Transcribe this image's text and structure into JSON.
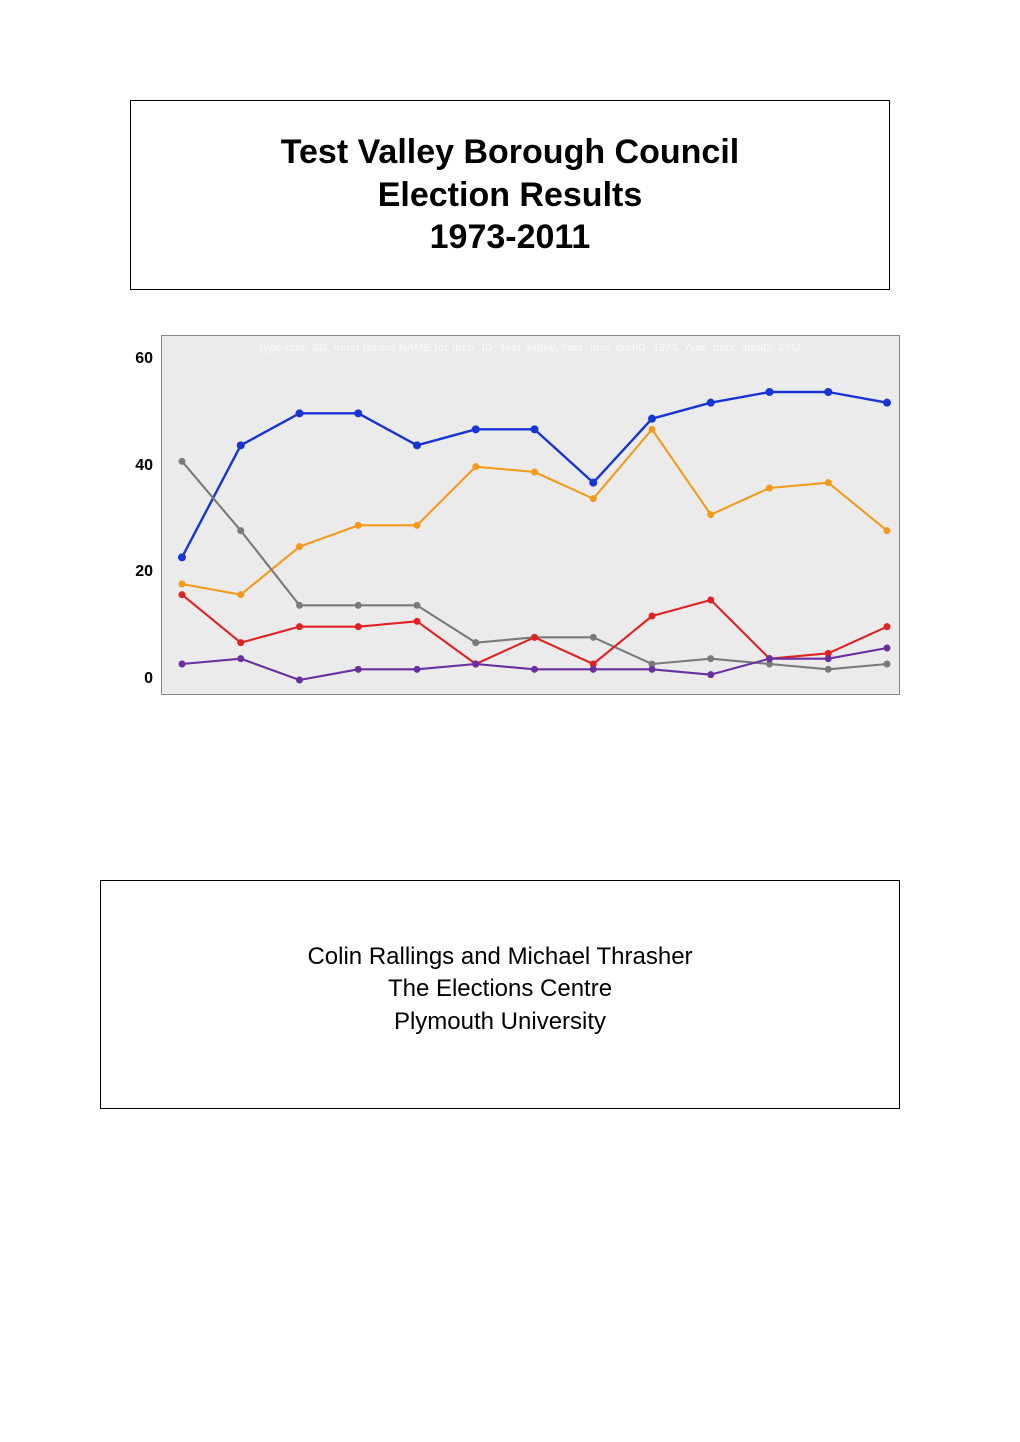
{
  "title": {
    "line1": "Test Valley Borough Council",
    "line2": "Election Results",
    "line3": "1973-2011",
    "fontsize": 34
  },
  "chart": {
    "type": "line",
    "caption": "type-fcat: SD, most recent NAME for distr_ID: Test Valley, Year_min_distID: 1973,  Year_max_distID: 2011",
    "background_color": "#ebebeb",
    "border_color": "#888888",
    "caption_color": "#f5f5f5",
    "ylim": [
      0,
      60
    ],
    "yticks": [
      0,
      20,
      40,
      60
    ],
    "y_label_fontsize": 16,
    "x_count": 13,
    "series": [
      {
        "name": "blue",
        "color": "#1735d4",
        "line_width": 2.4,
        "marker": "circle",
        "marker_size": 4,
        "values": [
          23,
          44,
          50,
          50,
          44,
          47,
          47,
          37,
          49,
          52,
          54,
          54,
          52
        ]
      },
      {
        "name": "orange",
        "color": "#f29a1c",
        "line_width": 2.1,
        "marker": "circle",
        "marker_size": 3.5,
        "values": [
          18,
          16,
          25,
          29,
          29,
          40,
          39,
          34,
          47,
          31,
          36,
          37,
          28
        ]
      },
      {
        "name": "grey",
        "color": "#7a7a7a",
        "line_width": 2.1,
        "marker": "circle",
        "marker_size": 3.5,
        "values": [
          41,
          28,
          14,
          14,
          14,
          7,
          8,
          8,
          3,
          4,
          3,
          2,
          3
        ]
      },
      {
        "name": "red",
        "color": "#e02222",
        "line_width": 2.1,
        "marker": "circle",
        "marker_size": 3.5,
        "values": [
          16,
          7,
          10,
          10,
          11,
          3,
          8,
          3,
          12,
          15,
          4,
          5,
          10
        ]
      },
      {
        "name": "purple",
        "color": "#6a2fa0",
        "line_width": 2.1,
        "marker": "circle",
        "marker_size": 3.5,
        "values": [
          3,
          4,
          0,
          2,
          2,
          3,
          2,
          2,
          2,
          1,
          4,
          4,
          6
        ]
      }
    ]
  },
  "authors": {
    "line1": "Colin Rallings and Michael Thrasher",
    "line2": "The Elections Centre",
    "line3": "Plymouth University",
    "fontsize": 24
  }
}
